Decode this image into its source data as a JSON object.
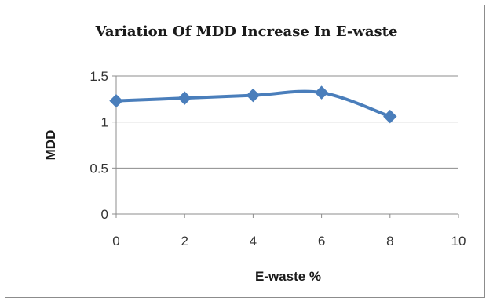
{
  "chart_data": {
    "type": "line",
    "title": "Variation Of MDD Increase In E-waste",
    "xlabel": "E-waste %",
    "ylabel": "MDD",
    "xlim": [
      0,
      10
    ],
    "ylim": [
      0,
      1.5
    ],
    "x_ticks": [
      "0",
      "2",
      "4",
      "6",
      "8",
      "10"
    ],
    "y_ticks": [
      "0",
      "0.5",
      "1",
      "1.5"
    ],
    "grid": true,
    "legend": "none",
    "series": [
      {
        "x": [
          0,
          2,
          4,
          6,
          8
        ],
        "values": [
          1.23,
          1.26,
          1.29,
          1.32,
          1.06
        ],
        "color": "#4a7ebb",
        "marker": "diamond"
      }
    ]
  }
}
